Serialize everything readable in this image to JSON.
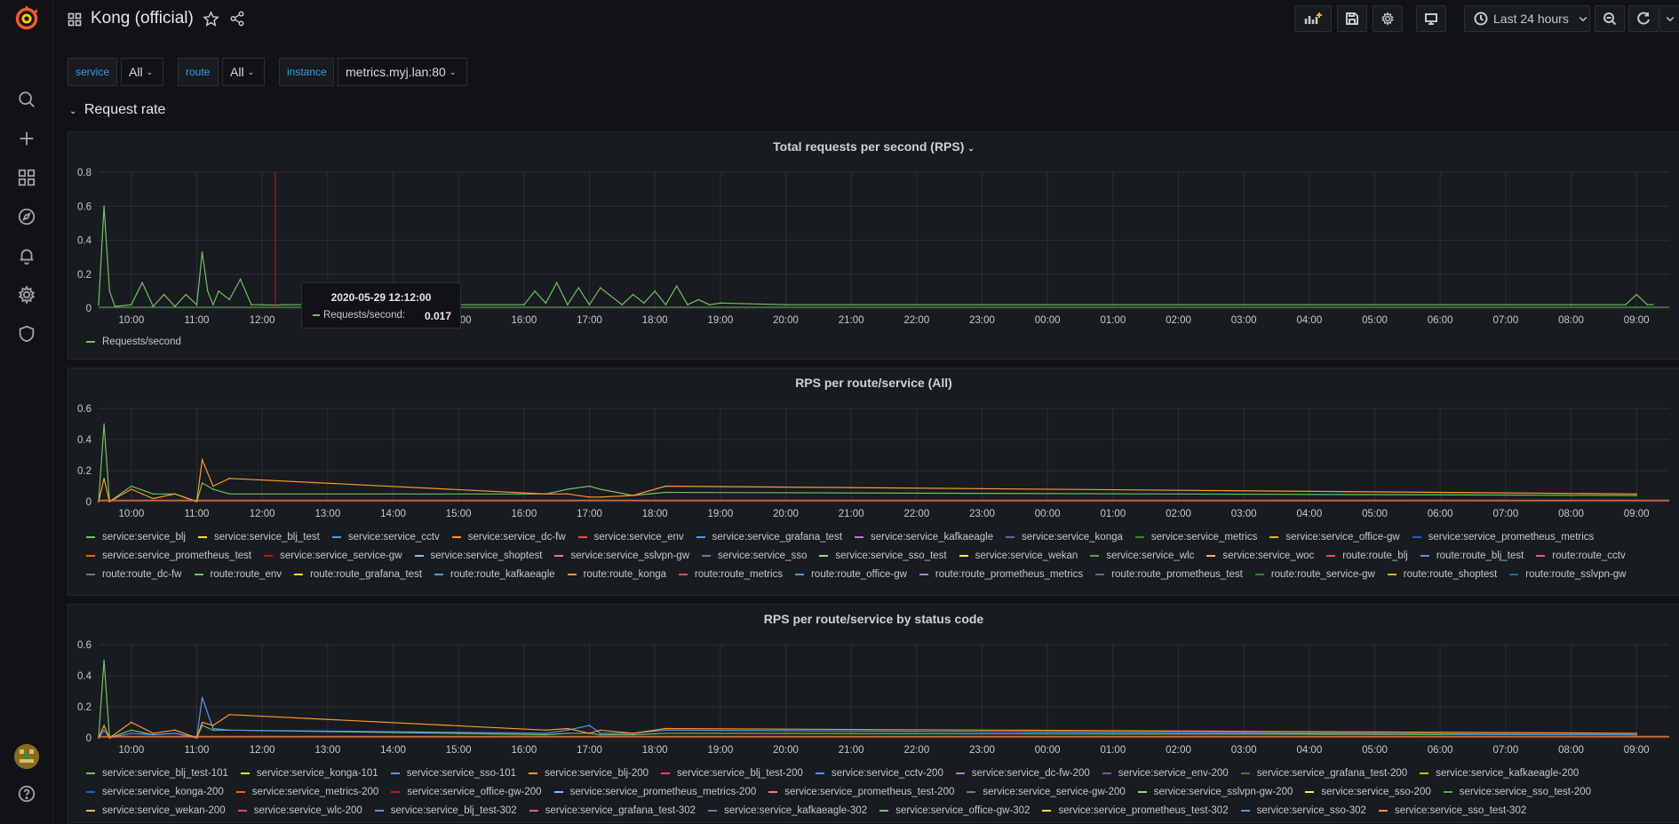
{
  "header": {
    "title": "Kong (official)",
    "time_range": "Last 24 hours"
  },
  "variables": [
    {
      "label": "service",
      "value": "All"
    },
    {
      "label": "route",
      "value": "All"
    },
    {
      "label": "instance",
      "value": "metrics.myj.lan:80"
    }
  ],
  "row": {
    "title": "Request rate"
  },
  "time_ticks": [
    "10:00",
    "11:00",
    "12:00",
    "13:00",
    "14:00",
    "15:00",
    "16:00",
    "17:00",
    "18:00",
    "19:00",
    "20:00",
    "21:00",
    "22:00",
    "23:00",
    "00:00",
    "01:00",
    "02:00",
    "03:00",
    "04:00",
    "05:00",
    "06:00",
    "07:00",
    "08:00",
    "09:00"
  ],
  "colors": {
    "green": "#73bf69",
    "yellow": "#fade2a",
    "blue": "#5794f2",
    "orange": "#ff9830",
    "red": "#f2495c",
    "purple": "#b877d9",
    "accent": "#33a2e5",
    "cursor": "#c4162a"
  },
  "tooltip": {
    "time": "2020-05-29 12:12:00",
    "label": "Requests/second:",
    "value": "0.017"
  },
  "panels": [
    {
      "title": "Total requests per second (RPS)",
      "legend": [
        {
          "name": "Requests/second",
          "color": "#73bf69"
        }
      ]
    },
    {
      "title": "RPS per route/service (All)",
      "legend": [
        {
          "name": "service:service_blj",
          "color": "#73bf69"
        },
        {
          "name": "service:service_blj_test",
          "color": "#fade2a"
        },
        {
          "name": "service:service_cctv",
          "color": "#5794f2"
        },
        {
          "name": "service:service_dc-fw",
          "color": "#ff9830"
        },
        {
          "name": "service:service_env",
          "color": "#f2495c"
        },
        {
          "name": "service:service_grafana_test",
          "color": "#5794f2"
        },
        {
          "name": "service:service_kafkaeagle",
          "color": "#b877d9"
        },
        {
          "name": "service:service_konga",
          "color": "#705da0"
        },
        {
          "name": "service:service_metrics",
          "color": "#37872d"
        },
        {
          "name": "service:service_office-gw",
          "color": "#e0b400"
        },
        {
          "name": "service:service_prometheus_metrics",
          "color": "#1f60c4"
        },
        {
          "name": "service:service_prometheus_test",
          "color": "#fa6400"
        },
        {
          "name": "service:service_service-gw",
          "color": "#c4162a"
        },
        {
          "name": "service:service_shoptest",
          "color": "#8ab8ff"
        },
        {
          "name": "service:service_sslvpn-gw",
          "color": "#ff7383"
        },
        {
          "name": "service:service_sso",
          "color": "#6e7b91"
        },
        {
          "name": "service:service_sso_test",
          "color": "#96d98d"
        },
        {
          "name": "service:service_wekan",
          "color": "#ffee52"
        },
        {
          "name": "service:service_wlc",
          "color": "#56a64b"
        },
        {
          "name": "service:service_woc",
          "color": "#ffb357"
        },
        {
          "name": "route:route_blj",
          "color": "#f2495c"
        },
        {
          "name": "route:route_blj_test",
          "color": "#5794f2"
        },
        {
          "name": "route:route_cctv",
          "color": "#de5f96"
        },
        {
          "name": "route:route_dc-fw",
          "color": "#6e7b91"
        },
        {
          "name": "route:route_env",
          "color": "#73bf69"
        },
        {
          "name": "route:route_grafana_test",
          "color": "#fade2a"
        },
        {
          "name": "route:route_kafkaeagle",
          "color": "#5794f2"
        },
        {
          "name": "route:route_konga",
          "color": "#ff9830"
        },
        {
          "name": "route:route_metrics",
          "color": "#f2495c"
        },
        {
          "name": "route:route_office-gw",
          "color": "#5794f2"
        },
        {
          "name": "route:route_prometheus_metrics",
          "color": "#b877d9"
        },
        {
          "name": "route:route_prometheus_test",
          "color": "#705da0"
        },
        {
          "name": "route:route_service-gw",
          "color": "#37872d"
        },
        {
          "name": "route:route_shoptest",
          "color": "#e0b400"
        },
        {
          "name": "route:route_sslvpn-gw",
          "color": "#1f60c4"
        }
      ]
    },
    {
      "title": "RPS per route/service by status code",
      "legend": [
        {
          "name": "service:service_blj_test-101",
          "color": "#73bf69"
        },
        {
          "name": "service:service_konga-101",
          "color": "#fade2a"
        },
        {
          "name": "service:service_sso-101",
          "color": "#5794f2"
        },
        {
          "name": "service:service_blj-200",
          "color": "#ff9830"
        },
        {
          "name": "service:service_blj_test-200",
          "color": "#f2495c"
        },
        {
          "name": "service:service_cctv-200",
          "color": "#5794f2"
        },
        {
          "name": "service:service_dc-fw-200",
          "color": "#b877d9"
        },
        {
          "name": "service:service_env-200",
          "color": "#705da0"
        },
        {
          "name": "service:service_grafana_test-200",
          "color": "#37872d"
        },
        {
          "name": "service:service_kafkaeagle-200",
          "color": "#e0b400"
        },
        {
          "name": "service:service_konga-200",
          "color": "#1f60c4"
        },
        {
          "name": "service:service_metrics-200",
          "color": "#fa6400"
        },
        {
          "name": "service:service_office-gw-200",
          "color": "#c4162a"
        },
        {
          "name": "service:service_prometheus_metrics-200",
          "color": "#8ab8ff"
        },
        {
          "name": "service:service_prometheus_test-200",
          "color": "#ff7383"
        },
        {
          "name": "service:service_service-gw-200",
          "color": "#6e7b91"
        },
        {
          "name": "service:service_sslvpn-gw-200",
          "color": "#96d98d"
        },
        {
          "name": "service:service_sso-200",
          "color": "#ffee52"
        },
        {
          "name": "service:service_sso_test-200",
          "color": "#56a64b"
        },
        {
          "name": "service:service_wekan-200",
          "color": "#ffb357"
        },
        {
          "name": "service:service_wlc-200",
          "color": "#f2495c"
        },
        {
          "name": "service:service_blj_test-302",
          "color": "#5794f2"
        },
        {
          "name": "service:service_grafana_test-302",
          "color": "#de5f96"
        },
        {
          "name": "service:service_kafkaeagle-302",
          "color": "#6e7b91"
        },
        {
          "name": "service:service_office-gw-302",
          "color": "#73bf69"
        },
        {
          "name": "service:service_prometheus_test-302",
          "color": "#fade2a"
        },
        {
          "name": "service:service_sso-302",
          "color": "#5794f2"
        },
        {
          "name": "service:service_sso_test-302",
          "color": "#ff9830"
        }
      ]
    }
  ],
  "chart_data": [
    {
      "type": "line",
      "title": "Total requests per second (RPS)",
      "ylim": [
        0,
        0.8
      ],
      "yticks": [
        "0",
        "0.2",
        "0.4",
        "0.6",
        "0.8"
      ],
      "x": [
        "09:30",
        "09:35",
        "09:40",
        "09:45",
        "10:00",
        "10:10",
        "10:20",
        "10:30",
        "10:40",
        "10:50",
        "11:00",
        "11:05",
        "11:10",
        "11:15",
        "11:20",
        "11:30",
        "11:40",
        "11:50",
        "12:00",
        "12:12",
        "12:20",
        "13:00",
        "14:00",
        "15:00",
        "16:00",
        "16:10",
        "16:20",
        "16:30",
        "16:40",
        "16:50",
        "17:00",
        "17:10",
        "17:30",
        "17:40",
        "17:50",
        "18:00",
        "18:10",
        "18:20",
        "18:30",
        "18:40",
        "18:50",
        "19:00",
        "20:00",
        "08:00",
        "08:50",
        "09:00",
        "09:10",
        "09:15"
      ],
      "series": [
        {
          "name": "Requests/second",
          "values": [
            0.02,
            0.6,
            0.1,
            0.01,
            0.02,
            0.15,
            0.01,
            0.08,
            0.01,
            0.08,
            0.02,
            0.33,
            0.1,
            0.02,
            0.1,
            0.05,
            0.17,
            0.02,
            0.02,
            0.017,
            0.02,
            0.02,
            0.02,
            0.02,
            0.02,
            0.1,
            0.03,
            0.15,
            0.02,
            0.12,
            0.02,
            0.12,
            0.02,
            0.08,
            0.03,
            0.1,
            0.02,
            0.13,
            0.02,
            0.05,
            0.02,
            0.03,
            0.02,
            0.02,
            0.02,
            0.08,
            0.02,
            0.02
          ]
        }
      ]
    },
    {
      "type": "line",
      "title": "RPS per route/service (All)",
      "ylim": [
        0,
        0.6
      ],
      "yticks": [
        "0",
        "0.2",
        "0.4",
        "0.6"
      ],
      "x": [
        "09:30",
        "09:35",
        "09:40",
        "10:00",
        "10:20",
        "10:40",
        "11:00",
        "11:05",
        "11:15",
        "11:30",
        "16:20",
        "16:40",
        "17:00",
        "17:10",
        "17:40",
        "18:10",
        "09:00"
      ],
      "series": [
        {
          "name": "service:service_blj",
          "values": [
            0,
            0.5,
            0,
            0.1,
            0.05,
            0.05,
            0,
            0.12,
            0.08,
            0.05,
            0.05,
            0.08,
            0.1,
            0.08,
            0.04,
            0.06,
            0.04
          ]
        },
        {
          "name": "service:service_dc-fw",
          "values": [
            0,
            0.15,
            0,
            0.08,
            0.02,
            0.05,
            0,
            0.27,
            0.1,
            0.15,
            0.05,
            0.05,
            0.03,
            0.03,
            0.04,
            0.1,
            0.05
          ]
        }
      ]
    },
    {
      "type": "line",
      "title": "RPS per route/service by status code",
      "ylim": [
        0,
        0.6
      ],
      "yticks": [
        "0",
        "0.2",
        "0.4",
        "0.6"
      ],
      "x": [
        "09:30",
        "09:35",
        "09:40",
        "10:00",
        "10:20",
        "10:40",
        "11:00",
        "11:05",
        "11:15",
        "11:30",
        "16:20",
        "16:40",
        "17:00",
        "17:10",
        "17:40",
        "18:10",
        "09:00"
      ],
      "series": [
        {
          "name": "service:service_blj_test-101",
          "values": [
            0,
            0.5,
            0,
            0.05,
            0.02,
            0.03,
            0,
            0.08,
            0.05,
            0.05,
            0.02,
            0.03,
            0.03,
            0.02,
            0.02,
            0.03,
            0.02
          ]
        },
        {
          "name": "service:service_cctv-200",
          "values": [
            0,
            0.05,
            0,
            0.03,
            0.02,
            0.03,
            0,
            0.26,
            0.06,
            0.05,
            0.03,
            0.05,
            0.08,
            0.03,
            0.03,
            0.05,
            0.02
          ]
        },
        {
          "name": "service:service_blj-200",
          "values": [
            0,
            0.08,
            0,
            0.1,
            0.03,
            0.05,
            0,
            0.1,
            0.08,
            0.15,
            0.05,
            0.06,
            0.03,
            0.05,
            0.03,
            0.06,
            0.03
          ]
        }
      ]
    }
  ]
}
